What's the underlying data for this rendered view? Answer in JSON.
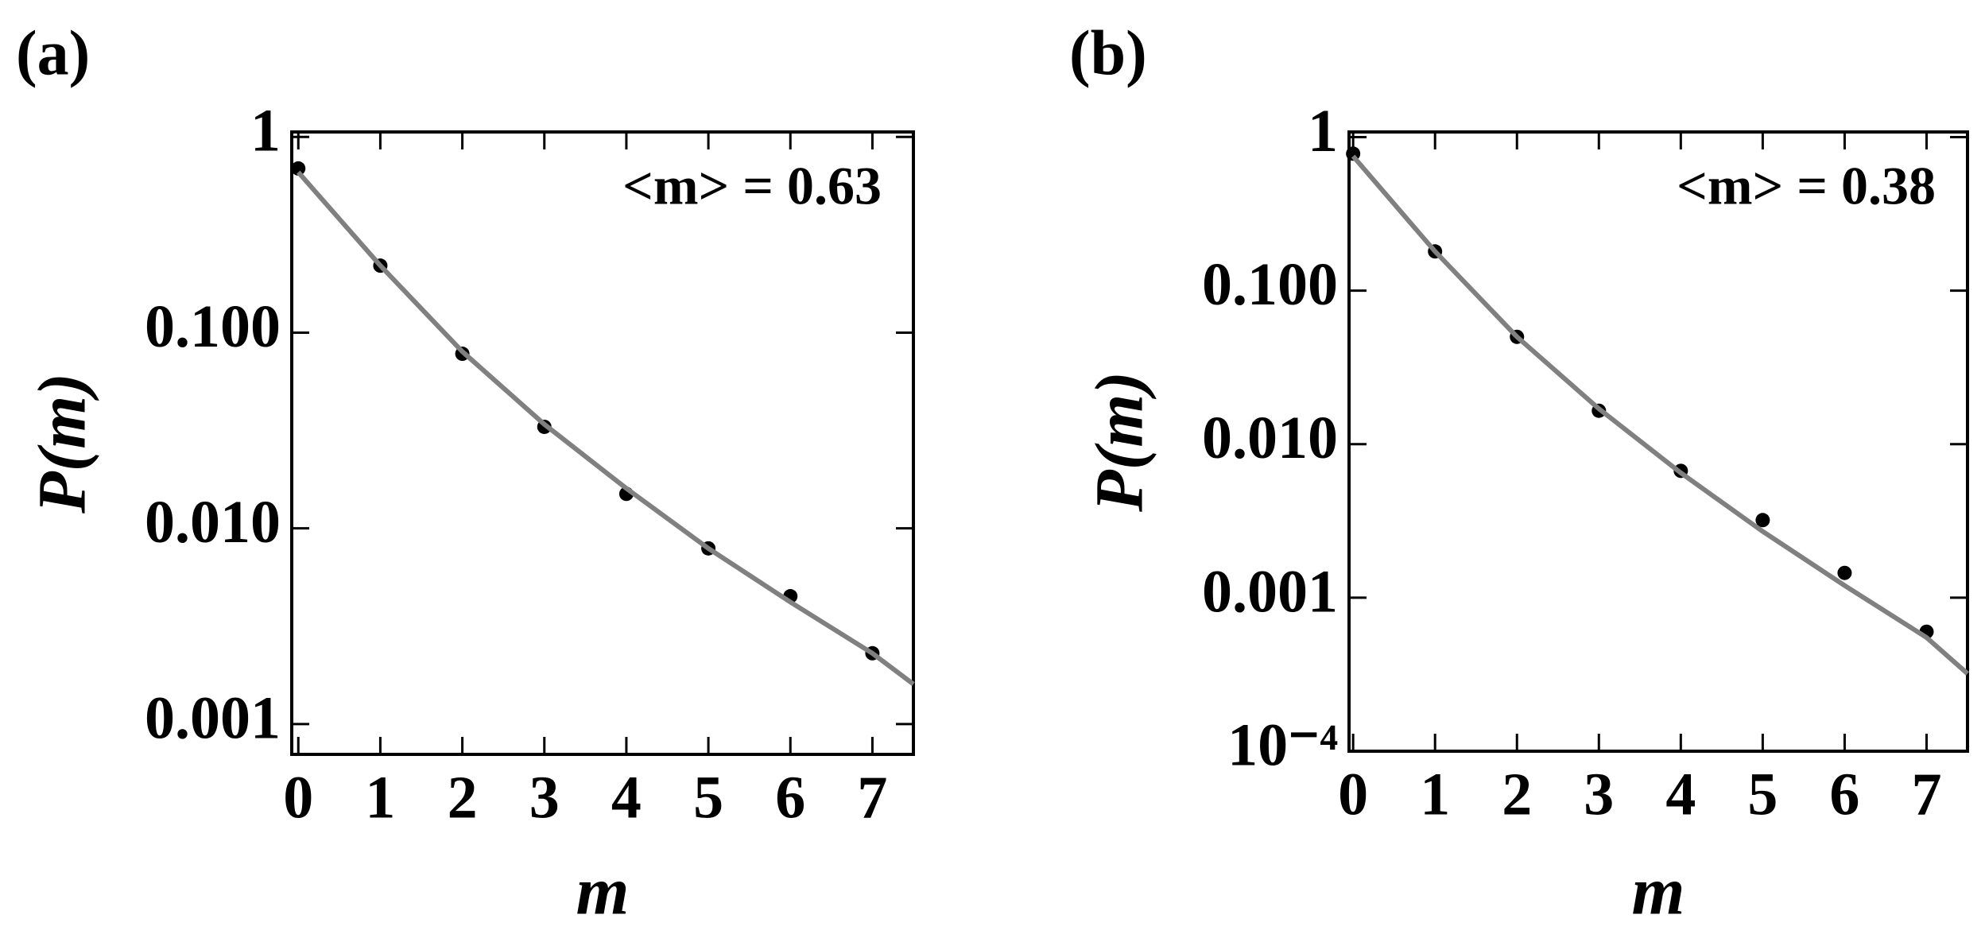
{
  "chart_data": [
    {
      "type": "scatter",
      "panel": "(a)",
      "annotation": "<m> = 0.63",
      "xlabel": "m",
      "ylabel": "P(m)",
      "ylog": true,
      "xlim": [
        -0.08,
        7.5
      ],
      "ylim": [
        0.0007,
        1.06
      ],
      "xticks": [
        0,
        1,
        2,
        3,
        4,
        5,
        6,
        7
      ],
      "yticks": [
        1,
        {
          "value": 0.1,
          "label": "0.100"
        },
        {
          "value": 0.01,
          "label": "0.010"
        },
        {
          "value": 0.001,
          "label": "0.001"
        }
      ],
      "series": [
        {
          "type": "scatter",
          "color": "#000000",
          "x": [
            0,
            1,
            2,
            3,
            4,
            5,
            6,
            7
          ],
          "values": [
            0.69,
            0.22,
            0.078,
            0.033,
            0.015,
            0.0079,
            0.0045,
            0.0023
          ]
        },
        {
          "type": "line",
          "color": "#808080",
          "x": [
            0,
            1,
            2,
            3,
            4,
            5,
            6,
            7,
            7.5
          ],
          "values": [
            0.66,
            0.22,
            0.08,
            0.034,
            0.016,
            0.0079,
            0.0042,
            0.0023,
            0.0016
          ]
        }
      ]
    },
    {
      "type": "scatter",
      "panel": "(b)",
      "annotation": "<m> = 0.38",
      "xlabel": "m",
      "ylabel": "P(m)",
      "ylog": true,
      "xlim": [
        -0.05,
        7.5
      ],
      "ylim": [
        0.0001,
        1.08
      ],
      "xticks": [
        0,
        1,
        2,
        3,
        4,
        5,
        6,
        7
      ],
      "yticks": [
        1,
        {
          "value": 0.1,
          "label": "0.100"
        },
        {
          "value": 0.01,
          "label": "0.010"
        },
        {
          "value": 0.001,
          "label": "0.001"
        },
        {
          "value": 0.0001,
          "label": "10⁻⁴"
        }
      ],
      "series": [
        {
          "type": "scatter",
          "color": "#000000",
          "x": [
            0,
            1,
            2,
            3,
            4,
            5,
            6,
            7
          ],
          "values": [
            0.78,
            0.18,
            0.05,
            0.0165,
            0.0067,
            0.0032,
            0.00145,
            0.0006
          ]
        },
        {
          "type": "line",
          "color": "#808080",
          "x": [
            0,
            1,
            2,
            3,
            4,
            5,
            6,
            7,
            7.5
          ],
          "values": [
            0.75,
            0.18,
            0.05,
            0.017,
            0.0065,
            0.0027,
            0.0012,
            0.00055,
            0.00032
          ]
        }
      ]
    }
  ]
}
